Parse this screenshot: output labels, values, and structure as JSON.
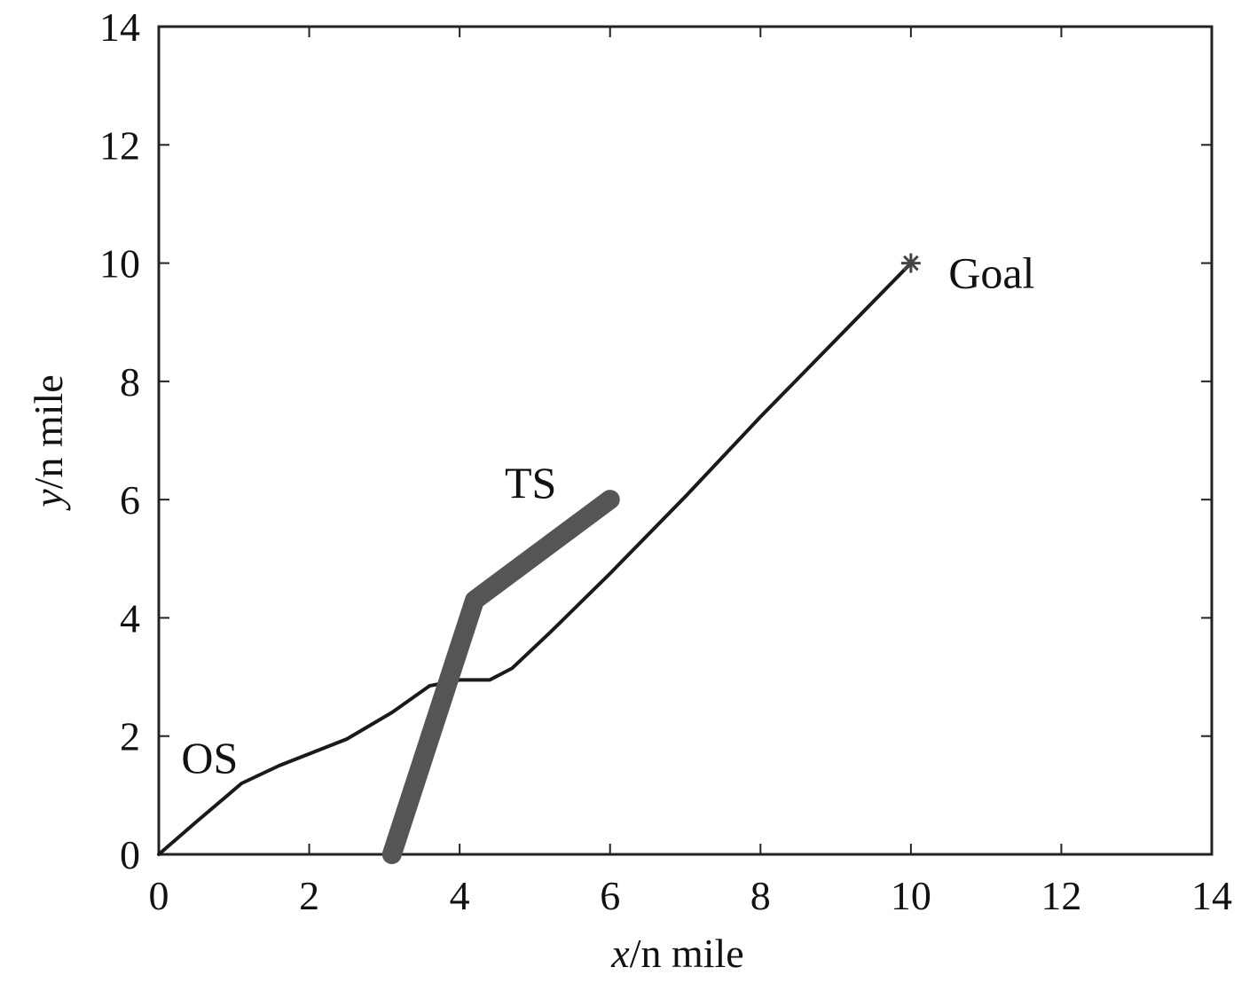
{
  "chart_data": {
    "type": "line",
    "title": "",
    "xlabel": {
      "var": "x",
      "unit": "/n mile"
    },
    "ylabel": {
      "var": "y",
      "unit": "/n mile"
    },
    "xlim": [
      0,
      14
    ],
    "ylim": [
      0,
      14
    ],
    "xticks": [
      0,
      2,
      4,
      6,
      8,
      10,
      12,
      14
    ],
    "yticks": [
      0,
      2,
      4,
      6,
      8,
      10,
      12,
      14
    ],
    "grid": false,
    "series": [
      {
        "name": "OS",
        "color": "#1a1a1a",
        "points": [
          [
            0,
            0
          ],
          [
            0.5,
            0.55
          ],
          [
            1.1,
            1.2
          ],
          [
            1.6,
            1.5
          ],
          [
            2.5,
            1.95
          ],
          [
            3.1,
            2.4
          ],
          [
            3.6,
            2.85
          ],
          [
            4.0,
            2.95
          ],
          [
            4.4,
            2.95
          ],
          [
            4.7,
            3.15
          ],
          [
            5.2,
            3.75
          ],
          [
            6.0,
            4.75
          ],
          [
            7.0,
            6.05
          ],
          [
            8.0,
            7.4
          ],
          [
            9.0,
            8.7
          ],
          [
            10.0,
            10.0
          ]
        ]
      },
      {
        "name": "TS",
        "color": "#555555",
        "points": [
          [
            3.1,
            0
          ],
          [
            4.2,
            4.3
          ],
          [
            6.0,
            6.0
          ]
        ]
      }
    ],
    "markers": [
      {
        "name": "Goal",
        "symbol": "*",
        "x": 10,
        "y": 10,
        "color": "#444444"
      }
    ],
    "annotations": [
      {
        "text": "OS",
        "x": 0.3,
        "y": 1.65
      },
      {
        "text": "TS",
        "x": 4.6,
        "y": 6.3
      },
      {
        "text": "Goal",
        "x": 10.5,
        "y": 9.85
      }
    ]
  }
}
